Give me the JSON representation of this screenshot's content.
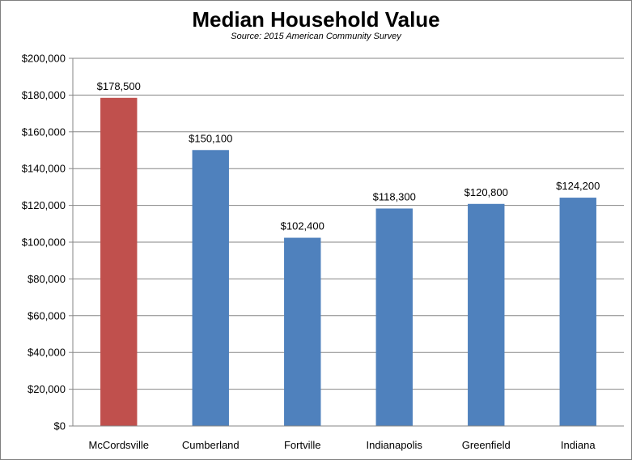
{
  "chart_data": {
    "type": "bar",
    "title": "Median Household Value",
    "subtitle": "Source: 2015 American Community Survey",
    "categories": [
      "McCordsville",
      "Cumberland",
      "Fortville",
      "Indianapolis",
      "Greenfield",
      "Indiana"
    ],
    "values": [
      178500,
      150100,
      102400,
      118300,
      120800,
      124200
    ],
    "data_labels": [
      "$178,500",
      "$150,100",
      "$102,400",
      "$118,300",
      "$120,800",
      "$124,200"
    ],
    "bar_colors": [
      "#c0504d",
      "#4f81bd",
      "#4f81bd",
      "#4f81bd",
      "#4f81bd",
      "#4f81bd"
    ],
    "ylim": [
      0,
      200000
    ],
    "yticks": [
      0,
      20000,
      40000,
      60000,
      80000,
      100000,
      120000,
      140000,
      160000,
      180000,
      200000
    ],
    "ytick_labels": [
      "$0",
      "$20,000",
      "$40,000",
      "$60,000",
      "$80,000",
      "$100,000",
      "$120,000",
      "$140,000",
      "$160,000",
      "$180,000",
      "$200,000"
    ],
    "xlabel": "",
    "ylabel": "",
    "grid": true,
    "legend": "none"
  }
}
